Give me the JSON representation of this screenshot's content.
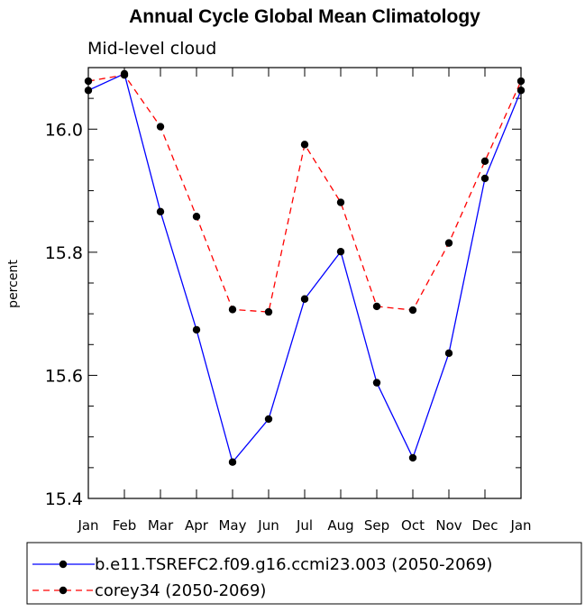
{
  "chart_data": {
    "type": "line",
    "title": "Annual Cycle Global Mean Climatology",
    "subtitle": "Mid-level cloud",
    "xlabel": "",
    "ylabel": "percent",
    "categories": [
      "Jan",
      "Feb",
      "Mar",
      "Apr",
      "May",
      "Jun",
      "Jul",
      "Aug",
      "Sep",
      "Oct",
      "Nov",
      "Dec",
      "Jan"
    ],
    "ylim": [
      15.4,
      16.1
    ],
    "yticks": [
      "15.4",
      "15.6",
      "15.8",
      "16.0"
    ],
    "ytick_values": [
      15.4,
      15.6,
      15.8,
      16.0
    ],
    "grid": false,
    "legend_position": "bottom",
    "series": [
      {
        "name": "b.e11.TSREFC2.f09.g16.ccmi23.003 (2050-2069)",
        "color": "#0000ff",
        "style": "solid",
        "values": [
          16.063,
          16.09,
          15.866,
          15.674,
          15.459,
          15.529,
          15.724,
          15.801,
          15.588,
          15.466,
          15.636,
          15.92,
          16.063
        ]
      },
      {
        "name": "corey34 (2050-2069)",
        "color": "#ff0000",
        "style": "dashed",
        "values": [
          16.078,
          16.088,
          16.004,
          15.858,
          15.707,
          15.703,
          15.975,
          15.881,
          15.712,
          15.706,
          15.815,
          15.948,
          16.078
        ]
      }
    ]
  }
}
